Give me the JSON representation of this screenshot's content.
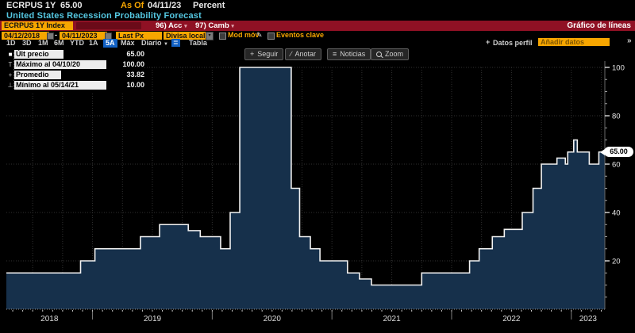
{
  "header": {
    "ticker": "ECRPUS 1Y",
    "price": "65.00",
    "as_of_label": "As Of",
    "as_of_date": "04/11/23",
    "unit": "Percent",
    "title": "United States Recession Probability Forecast"
  },
  "menubar": {
    "ticker_box": "ECRPUS 1Y Index",
    "action_num": "96)",
    "action_label": "Acc",
    "edit_num": "97)",
    "edit_label": "Camb",
    "dropdown_glyph": "▾",
    "right_label": "Gráfico de líneas"
  },
  "controls": {
    "date_from": "04/12/2018",
    "dash": "-",
    "date_to": "04/11/2023",
    "field": "Last Px",
    "currency": "Divisa local",
    "currency_arrow": "▾",
    "mov_avg": "Mod móv",
    "pencil": "✎",
    "key_events": "Eventos clave"
  },
  "periods": {
    "items": [
      "1D",
      "3D",
      "1M",
      "6M",
      "YTD",
      "1A",
      "5A",
      "Máx"
    ],
    "active": "5A",
    "frequency": "Diario",
    "freq_arrow": "▼",
    "layout_icon_glyph": "≣",
    "table": "Tabla",
    "add_data_plus": "+",
    "add_data_label": "Datos perfil",
    "add_data_placeholder": "Añadir datos",
    "chevron": "»"
  },
  "chart_toolbar": {
    "track_icon": "+",
    "track": "Seguir",
    "annotate_icon": "∕",
    "annotate": "Anotar",
    "news_icon": "≡",
    "news": "Noticias",
    "zoom": "Zoom"
  },
  "legend": {
    "rows": [
      {
        "glyph": "■",
        "label": "Últ precio",
        "value": "65.00"
      },
      {
        "glyph": "T",
        "label": "Máximo al 04/10/20",
        "value": "100.00"
      },
      {
        "glyph": "+",
        "label": "Promedio",
        "value": "33.82"
      },
      {
        "glyph": "⊥",
        "label": "Mínimo al 05/14/21",
        "value": "10.00"
      }
    ]
  },
  "price_badge": "65.00",
  "colors": {
    "background": "#000000",
    "area_fill": "#16304b",
    "line": "#f2f2f2",
    "grid": "#303030",
    "amber": "#f7a600",
    "red_bar": "#8f1124",
    "title_cyan": "#55c8e2",
    "active_blue": "#1261c4",
    "axis_text": "#e6e6e6"
  },
  "chart_data": {
    "type": "area",
    "subtype": "step",
    "title": "United States Recession Probability Forecast",
    "unit": "Percent",
    "x_start": 2018.28,
    "x_end": 2023.28,
    "x_start_label": "04/12/2018",
    "x_end_label": "04/11/2023",
    "ylim": [
      0,
      100
    ],
    "y_ticks": [
      20,
      40,
      60,
      80,
      100
    ],
    "y_minor_step": 5,
    "grid": "dotted",
    "legend_position": "top-left",
    "x_year_labels": [
      "2018",
      "2019",
      "2020",
      "2021",
      "2022",
      "2023"
    ],
    "last_value": 65.0,
    "max_value": 100.0,
    "min_value": 10.0,
    "mean_value": 33.82,
    "points": [
      [
        2018.28,
        15
      ],
      [
        2018.9,
        20
      ],
      [
        2019.02,
        25
      ],
      [
        2019.4,
        30
      ],
      [
        2019.56,
        35
      ],
      [
        2019.8,
        32.5
      ],
      [
        2019.9,
        30
      ],
      [
        2020.07,
        25
      ],
      [
        2020.15,
        40
      ],
      [
        2020.23,
        100
      ],
      [
        2020.66,
        50
      ],
      [
        2020.73,
        30
      ],
      [
        2020.82,
        25
      ],
      [
        2020.9,
        20
      ],
      [
        2021.13,
        15
      ],
      [
        2021.23,
        12.5
      ],
      [
        2021.33,
        10
      ],
      [
        2021.75,
        15
      ],
      [
        2022.15,
        20
      ],
      [
        2022.23,
        25
      ],
      [
        2022.34,
        30
      ],
      [
        2022.44,
        33
      ],
      [
        2022.59,
        40
      ],
      [
        2022.68,
        50
      ],
      [
        2022.75,
        60
      ],
      [
        2022.88,
        62.5
      ],
      [
        2022.95,
        60
      ],
      [
        2022.97,
        65
      ],
      [
        2023.02,
        70
      ],
      [
        2023.05,
        65
      ],
      [
        2023.15,
        60
      ],
      [
        2023.23,
        65
      ]
    ]
  }
}
